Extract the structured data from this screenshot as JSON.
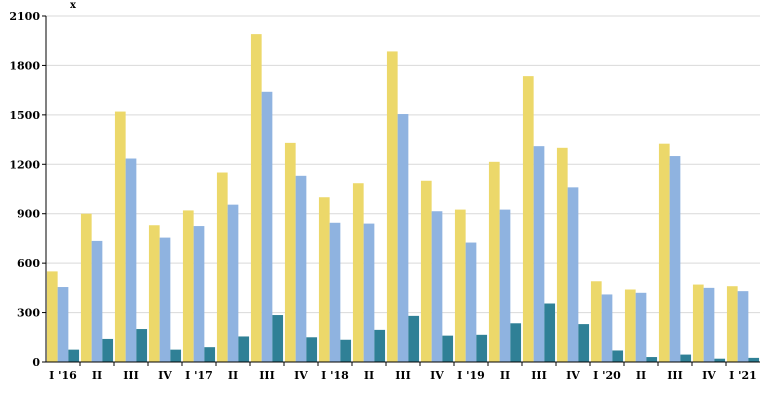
{
  "chart_data": {
    "type": "bar",
    "categories": [
      "I '16",
      "II",
      "III",
      "IV",
      "I '17",
      "II",
      "III",
      "IV",
      "I '18",
      "II",
      "III",
      "IV",
      "I '19",
      "II",
      "III",
      "IV",
      "I '20",
      "II",
      "III",
      "IV",
      "I '21"
    ],
    "series": [
      {
        "color": "#ecd86a",
        "values": [
          550,
          900,
          1520,
          830,
          920,
          1150,
          1990,
          1330,
          1000,
          1085,
          1885,
          1100,
          925,
          1215,
          1735,
          1300,
          490,
          440,
          1325,
          470,
          460
        ]
      },
      {
        "color": "#8fb3e0",
        "values": [
          455,
          735,
          1235,
          755,
          825,
          955,
          1640,
          1130,
          845,
          840,
          1505,
          915,
          725,
          925,
          1310,
          1060,
          410,
          420,
          1250,
          450,
          430
        ]
      },
      {
        "color": "#2f8096",
        "values": [
          75,
          140,
          200,
          75,
          90,
          155,
          285,
          150,
          135,
          195,
          280,
          160,
          165,
          235,
          355,
          230,
          70,
          30,
          45,
          20,
          25
        ]
      }
    ],
    "yticks": [
      "0",
      "300",
      "600",
      "900",
      "1200",
      "1500",
      "1800",
      "2100"
    ],
    "ylim": [
      0,
      2100
    ],
    "grid": true,
    "ylabel": "",
    "ylabel_mark": "x",
    "xlabel": ""
  }
}
